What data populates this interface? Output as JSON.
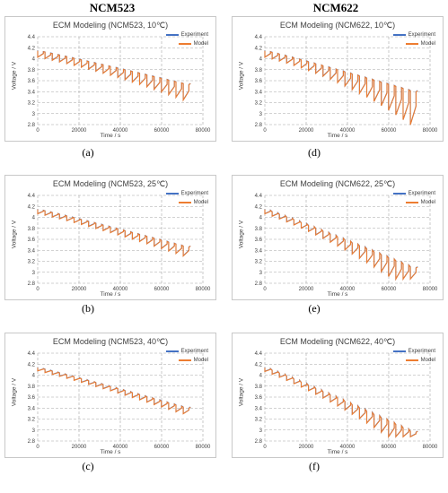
{
  "columns": [
    "NCM523",
    "NCM622"
  ],
  "colors": {
    "experiment": "#4472c4",
    "model": "#ed7d31",
    "grid": "#a6a6a6"
  },
  "chart_data": [
    {
      "caption": "(a)",
      "type": "line",
      "title": "ECM Modeling (NCM523, 10℃)",
      "xlabel": "Time / s",
      "ylabel": "Voltage / V",
      "xlim": [
        0,
        80000
      ],
      "ylim": [
        2.8,
        4.4
      ],
      "xticks": [
        "0",
        "20000",
        "40000",
        "60000",
        "80000"
      ],
      "yticks": [
        "2.8",
        "3",
        "3.2",
        "3.4",
        "3.6",
        "3.8",
        "4",
        "4.2",
        "4.4"
      ],
      "grid": true,
      "legend_position": "top-right",
      "series": [
        {
          "name": "Experiment"
        },
        {
          "name": "Model"
        }
      ],
      "t_end": 74000,
      "v_start": 4.15,
      "v_end": 3.55,
      "drop_start": 0.12,
      "drop_end": 0.3,
      "min_v": 3.25
    },
    {
      "caption": "(d)",
      "type": "line",
      "title": "ECM Modeling (NCM622, 10℃)",
      "xlabel": "Time / s",
      "ylabel": "Voltage / V",
      "xlim": [
        0,
        80000
      ],
      "ylim": [
        2.8,
        4.4
      ],
      "xticks": [
        "0",
        "20000",
        "40000",
        "60000",
        "80000"
      ],
      "yticks": [
        "2.8",
        "3",
        "3.2",
        "3.4",
        "3.6",
        "3.8",
        "4",
        "4.2",
        "4.4"
      ],
      "grid": true,
      "legend_position": "top-right",
      "series": [
        {
          "name": "Experiment"
        },
        {
          "name": "Model"
        }
      ],
      "t_end": 74000,
      "v_start": 4.15,
      "v_end": 3.42,
      "drop_start": 0.12,
      "drop_end": 0.62,
      "min_v": 2.8
    },
    {
      "caption": "(b)",
      "type": "line",
      "title": "ECM Modeling (NCM523, 25℃)",
      "xlabel": "Time / s",
      "ylabel": "Voltage / V",
      "xlim": [
        0,
        80000
      ],
      "ylim": [
        2.8,
        4.4
      ],
      "xticks": [
        "0",
        "20000",
        "40000",
        "60000",
        "80000"
      ],
      "yticks": [
        "2.8",
        "3",
        "3.2",
        "3.4",
        "3.6",
        "3.8",
        "4",
        "4.2",
        "4.4"
      ],
      "grid": true,
      "legend_position": "top-right",
      "series": [
        {
          "name": "Experiment"
        },
        {
          "name": "Model"
        }
      ],
      "t_end": 74000,
      "v_start": 4.15,
      "v_end": 3.48,
      "drop_start": 0.08,
      "drop_end": 0.18,
      "min_v": 3.3
    },
    {
      "caption": "(e)",
      "type": "line",
      "title": "ECM Modeling (NCM622, 25℃)",
      "xlabel": "Time / s",
      "ylabel": "Voltage / V",
      "xlim": [
        0,
        80000
      ],
      "ylim": [
        2.8,
        4.4
      ],
      "xticks": [
        "0",
        "20000",
        "40000",
        "60000",
        "80000"
      ],
      "yticks": [
        "2.8",
        "3",
        "3.2",
        "3.4",
        "3.6",
        "3.8",
        "4",
        "4.2",
        "4.4"
      ],
      "grid": true,
      "legend_position": "top-right",
      "series": [
        {
          "name": "Experiment"
        },
        {
          "name": "Model"
        }
      ],
      "t_end": 74000,
      "v_start": 4.15,
      "v_end": 3.1,
      "drop_start": 0.08,
      "drop_end": 0.45,
      "min_v": 2.88
    },
    {
      "caption": "(c)",
      "type": "line",
      "title": "ECM Modeling (NCM523, 40℃)",
      "xlabel": "Time / s",
      "ylabel": "Voltage / V",
      "xlim": [
        0,
        80000
      ],
      "ylim": [
        2.8,
        4.4
      ],
      "xticks": [
        "0",
        "20000",
        "40000",
        "60000",
        "80000"
      ],
      "yticks": [
        "2.8",
        "3",
        "3.2",
        "3.4",
        "3.6",
        "3.8",
        "4",
        "4.2",
        "4.4"
      ],
      "grid": true,
      "legend_position": "top-right",
      "series": [
        {
          "name": "Experiment"
        },
        {
          "name": "Model"
        }
      ],
      "t_end": 74000,
      "v_start": 4.14,
      "v_end": 3.42,
      "drop_start": 0.06,
      "drop_end": 0.13,
      "min_v": 3.3
    },
    {
      "caption": "(f)",
      "type": "line",
      "title": "ECM Modeling (NCM622, 40℃)",
      "xlabel": "Time / s",
      "ylabel": "Voltage / V",
      "xlim": [
        0,
        80000
      ],
      "ylim": [
        2.8,
        4.4
      ],
      "xticks": [
        "0",
        "20000",
        "40000",
        "60000",
        "80000"
      ],
      "yticks": [
        "2.8",
        "3",
        "3.2",
        "3.4",
        "3.6",
        "3.8",
        "4",
        "4.2",
        "4.4"
      ],
      "grid": true,
      "legend_position": "top-right",
      "series": [
        {
          "name": "Experiment"
        },
        {
          "name": "Model"
        }
      ],
      "t_end": 74000,
      "v_start": 4.14,
      "v_end": 2.98,
      "drop_start": 0.07,
      "drop_end": 0.38,
      "min_v": 2.88
    }
  ]
}
